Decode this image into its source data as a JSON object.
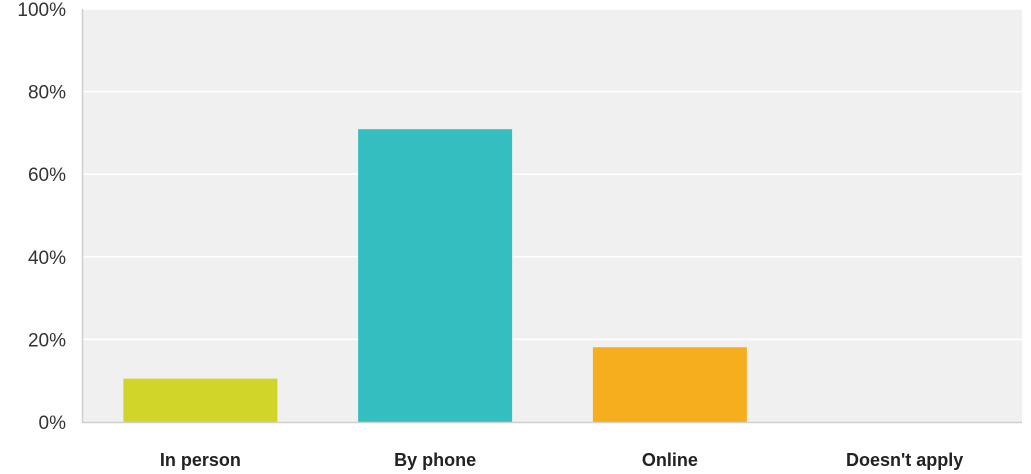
{
  "chart_data": {
    "type": "bar",
    "title": "",
    "xlabel": "",
    "ylabel": "",
    "categories": [
      "In person",
      "By phone",
      "Online",
      "Doesn't apply"
    ],
    "values": [
      10.5,
      70.9,
      18.1,
      0
    ],
    "value_unit": "%",
    "ylim": [
      0,
      100
    ],
    "yticks": [
      0,
      20,
      40,
      60,
      80,
      100
    ],
    "ytick_labels": [
      "0%",
      "20%",
      "40%",
      "60%",
      "80%",
      "100%"
    ],
    "grid": true,
    "legend": "none",
    "colors": [
      "#d1d52a",
      "#35bec0",
      "#f6ae1f",
      "#8c8c8c"
    ],
    "plot_background": "#f0f0f0",
    "gridline_color": "#ffffff",
    "axis_color": "#cfcfcf"
  }
}
